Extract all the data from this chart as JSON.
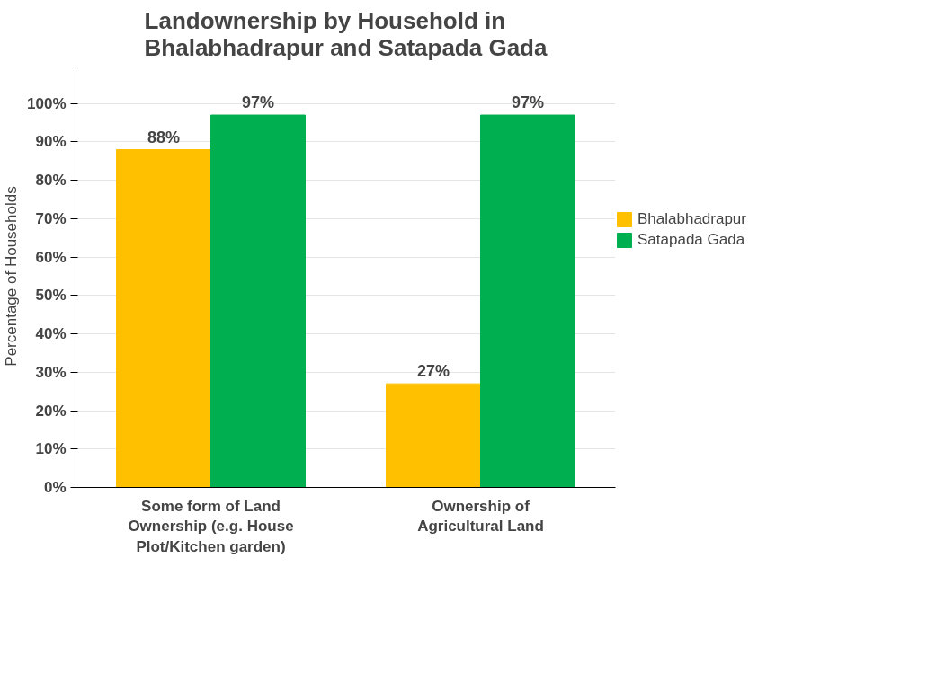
{
  "chart_data": {
    "type": "bar",
    "title": "Landownership by Household in Bhalabhadrapur and Satapada Gada",
    "ylabel": "Percentage of Households",
    "categories": [
      "Some form of Land Ownership (e.g. House Plot/Kitchen garden)",
      "Ownership of Agricultural Land"
    ],
    "series": [
      {
        "name": "Bhalabhadrapur",
        "color": "#ffc000",
        "values": [
          88,
          27
        ],
        "value_labels": [
          "88%",
          "27%"
        ]
      },
      {
        "name": "Satapada Gada",
        "color": "#00b050",
        "values": [
          97,
          97
        ],
        "value_labels": [
          "97%",
          "97%"
        ]
      }
    ],
    "ylim": [
      0,
      110
    ],
    "yticks": [
      {
        "value": 0,
        "label": "0%"
      },
      {
        "value": 10,
        "label": "10%"
      },
      {
        "value": 20,
        "label": "20%"
      },
      {
        "value": 30,
        "label": "30%"
      },
      {
        "value": 40,
        "label": "40%"
      },
      {
        "value": 50,
        "label": "50%"
      },
      {
        "value": 60,
        "label": "60%"
      },
      {
        "value": 70,
        "label": "70%"
      },
      {
        "value": 80,
        "label": "80%"
      },
      {
        "value": 90,
        "label": "90%"
      },
      {
        "value": 100,
        "label": "100%"
      }
    ],
    "grid": "y",
    "legend": "right"
  }
}
